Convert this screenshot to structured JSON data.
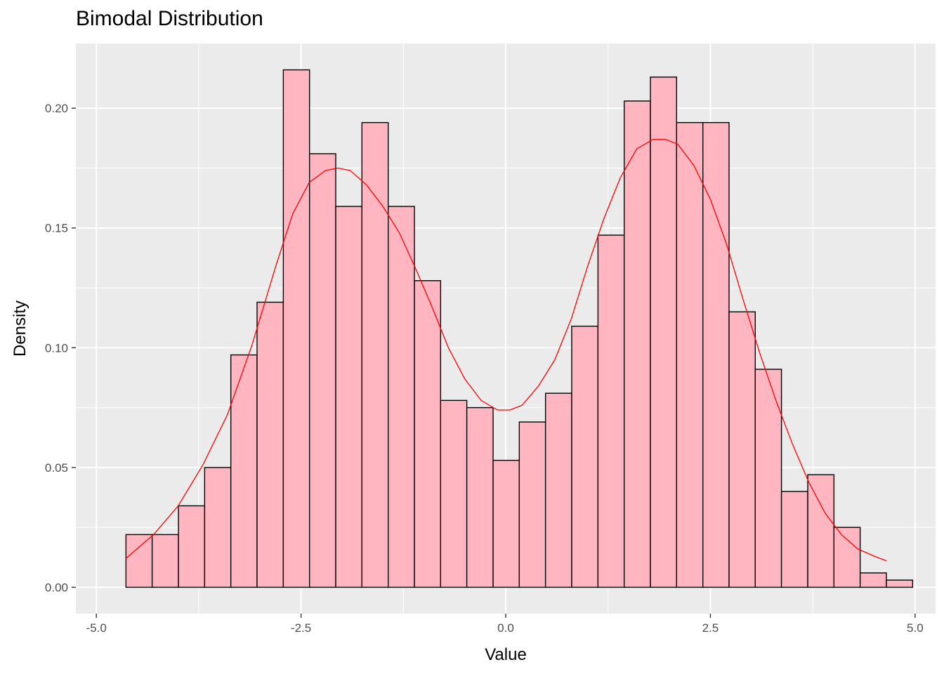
{
  "chart_data": {
    "type": "bar",
    "subtype": "histogram-with-density",
    "title": "Bimodal Distribution",
    "xlabel": "Value",
    "ylabel": "Density",
    "xlim": [
      -5.0,
      5.0
    ],
    "ylim": [
      0,
      0.22
    ],
    "x_ticks": [
      {
        "value": -5.0,
        "label": "-5.0"
      },
      {
        "value": -2.5,
        "label": "-2.5"
      },
      {
        "value": 0.0,
        "label": "0.0"
      },
      {
        "value": 2.5,
        "label": "2.5"
      },
      {
        "value": 5.0,
        "label": "5.0"
      }
    ],
    "y_ticks": [
      {
        "value": 0.0,
        "label": "0.00"
      },
      {
        "value": 0.05,
        "label": "0.05"
      },
      {
        "value": 0.1,
        "label": "0.10"
      },
      {
        "value": 0.15,
        "label": "0.15"
      },
      {
        "value": 0.2,
        "label": "0.20"
      }
    ],
    "grid": true,
    "bar_fill": "#ffb6c1",
    "bar_outline": "#000000",
    "density_color": "#ff0000",
    "panel_background": "#ebebeb",
    "bins": [
      {
        "start": -4.638,
        "end": -4.318,
        "density": 0.022
      },
      {
        "start": -4.318,
        "end": -3.997,
        "density": 0.022
      },
      {
        "start": -3.997,
        "end": -3.677,
        "density": 0.034
      },
      {
        "start": -3.677,
        "end": -3.357,
        "density": 0.05
      },
      {
        "start": -3.357,
        "end": -3.037,
        "density": 0.097
      },
      {
        "start": -3.037,
        "end": -2.716,
        "density": 0.119
      },
      {
        "start": -2.716,
        "end": -2.396,
        "density": 0.216
      },
      {
        "start": -2.396,
        "end": -2.076,
        "density": 0.181
      },
      {
        "start": -2.076,
        "end": -1.756,
        "density": 0.159
      },
      {
        "start": -1.756,
        "end": -1.435,
        "density": 0.194
      },
      {
        "start": -1.435,
        "end": -1.115,
        "density": 0.159
      },
      {
        "start": -1.115,
        "end": -0.795,
        "density": 0.128
      },
      {
        "start": -0.795,
        "end": -0.475,
        "density": 0.078
      },
      {
        "start": -0.475,
        "end": -0.154,
        "density": 0.075
      },
      {
        "start": -0.154,
        "end": 0.166,
        "density": 0.053
      },
      {
        "start": 0.166,
        "end": 0.486,
        "density": 0.069
      },
      {
        "start": 0.486,
        "end": 0.806,
        "density": 0.081
      },
      {
        "start": 0.806,
        "end": 1.127,
        "density": 0.109
      },
      {
        "start": 1.127,
        "end": 1.447,
        "density": 0.147
      },
      {
        "start": 1.447,
        "end": 1.767,
        "density": 0.203
      },
      {
        "start": 1.767,
        "end": 2.087,
        "density": 0.213
      },
      {
        "start": 2.087,
        "end": 2.408,
        "density": 0.194
      },
      {
        "start": 2.408,
        "end": 2.728,
        "density": 0.194
      },
      {
        "start": 2.728,
        "end": 3.048,
        "density": 0.115
      },
      {
        "start": 3.048,
        "end": 3.368,
        "density": 0.091
      },
      {
        "start": 3.368,
        "end": 3.689,
        "density": 0.04
      },
      {
        "start": 3.689,
        "end": 4.009,
        "density": 0.047
      },
      {
        "start": 4.009,
        "end": 4.329,
        "density": 0.025
      },
      {
        "start": 4.329,
        "end": 4.649,
        "density": 0.006
      },
      {
        "start": 4.649,
        "end": 4.97,
        "density": 0.003
      }
    ],
    "density_curve": {
      "x": [
        -4.64,
        -4.3,
        -4.0,
        -3.7,
        -3.4,
        -3.1,
        -2.8,
        -2.6,
        -2.4,
        -2.2,
        -2.05,
        -1.9,
        -1.7,
        -1.5,
        -1.3,
        -1.1,
        -0.9,
        -0.7,
        -0.5,
        -0.3,
        -0.1,
        0.05,
        0.2,
        0.4,
        0.6,
        0.8,
        1.0,
        1.2,
        1.4,
        1.6,
        1.8,
        1.95,
        2.1,
        2.3,
        2.5,
        2.7,
        2.9,
        3.1,
        3.3,
        3.5,
        3.7,
        3.9,
        4.1,
        4.3,
        4.5,
        4.65
      ],
      "y": [
        0.012,
        0.022,
        0.034,
        0.051,
        0.072,
        0.101,
        0.135,
        0.156,
        0.169,
        0.174,
        0.175,
        0.174,
        0.168,
        0.159,
        0.148,
        0.133,
        0.117,
        0.1,
        0.087,
        0.078,
        0.074,
        0.074,
        0.076,
        0.084,
        0.095,
        0.112,
        0.134,
        0.154,
        0.171,
        0.183,
        0.187,
        0.187,
        0.185,
        0.176,
        0.162,
        0.143,
        0.12,
        0.098,
        0.078,
        0.06,
        0.044,
        0.031,
        0.022,
        0.016,
        0.013,
        0.011
      ]
    }
  }
}
